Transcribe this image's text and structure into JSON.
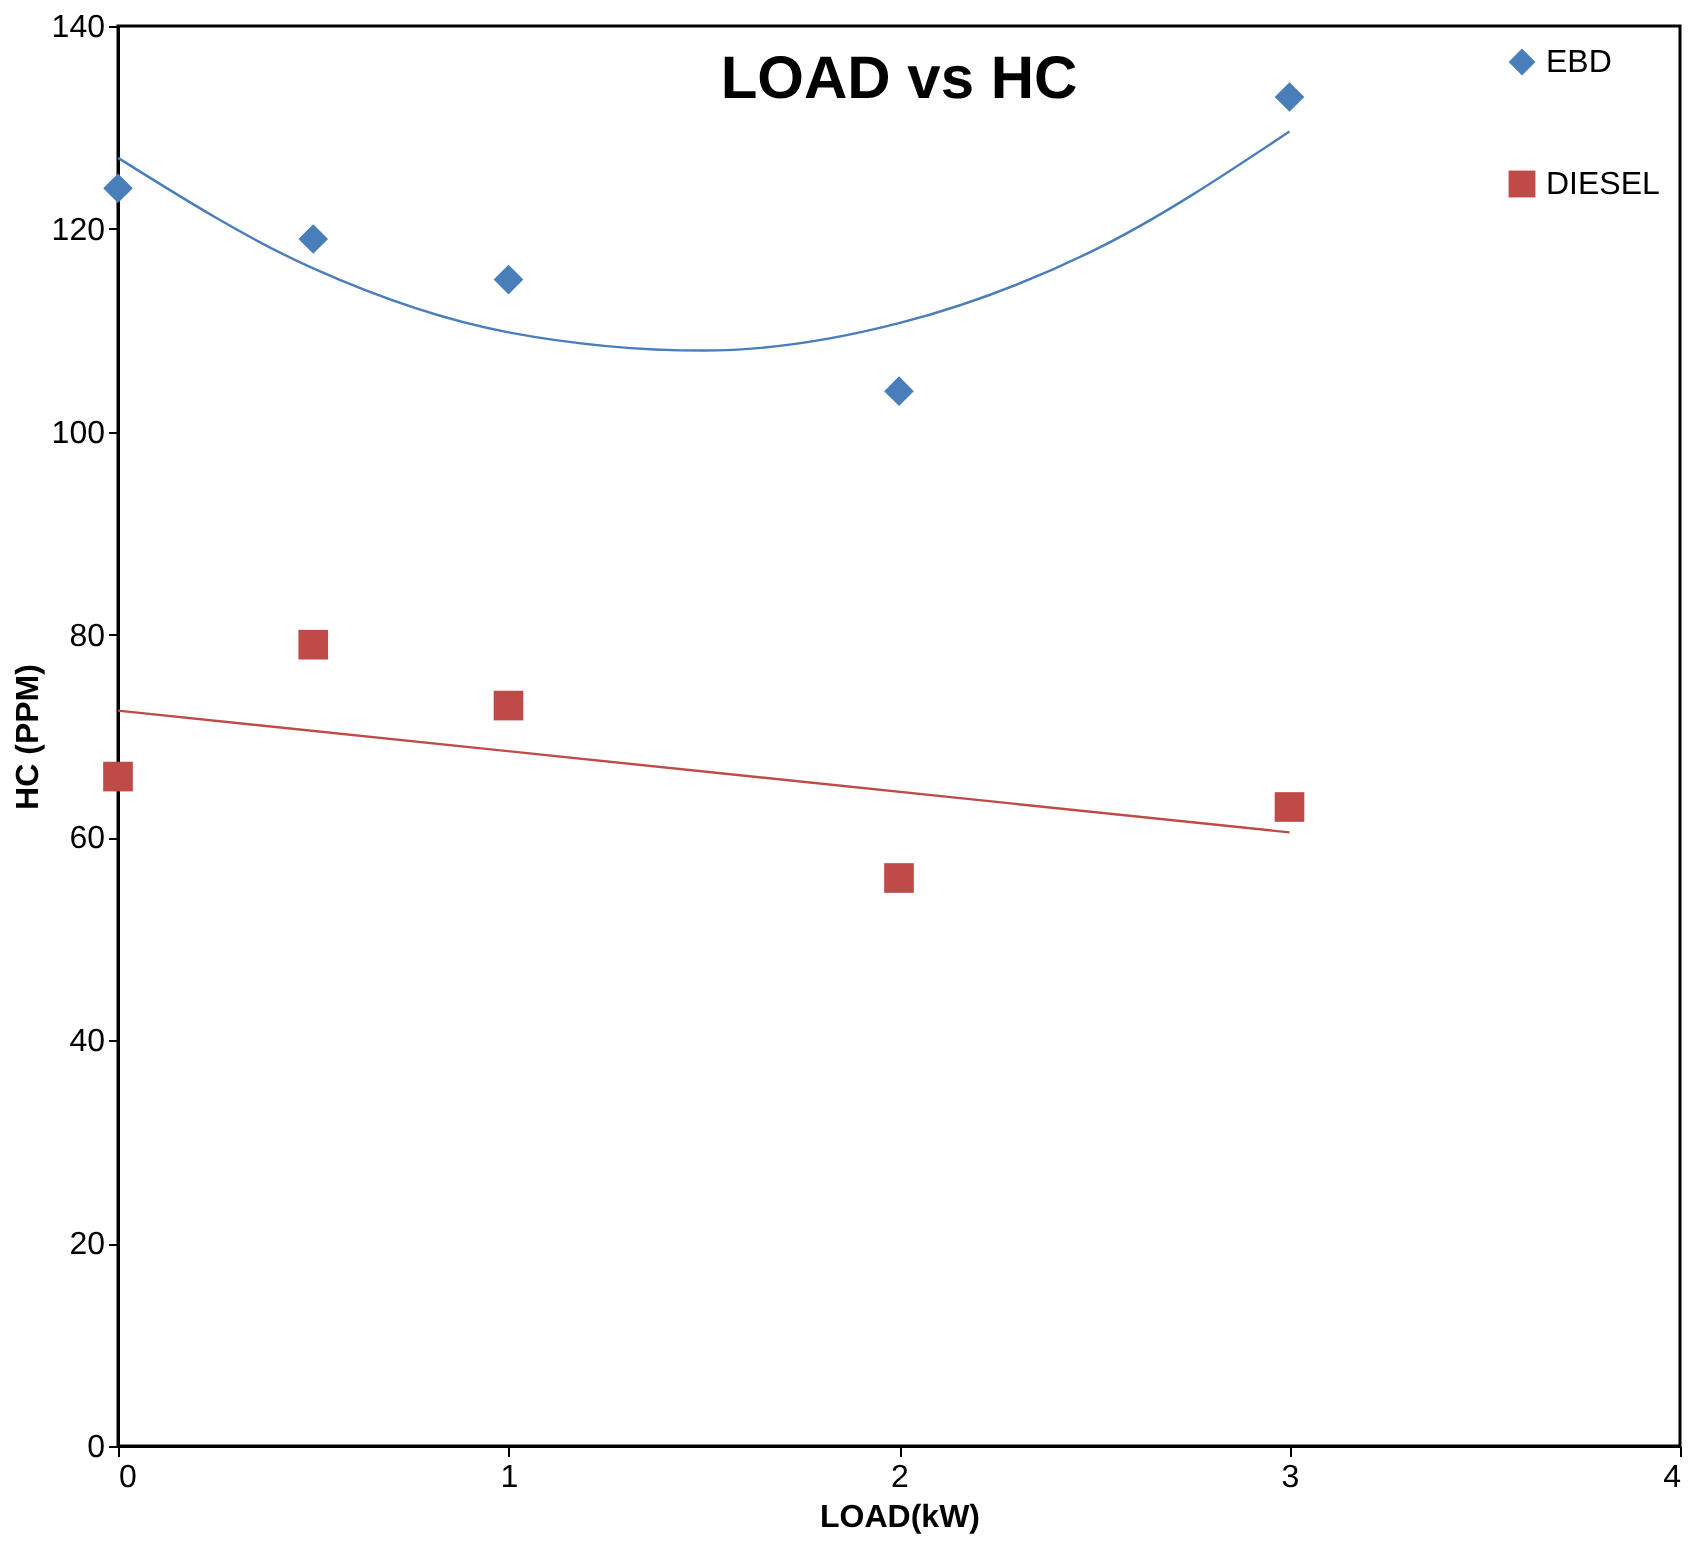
{
  "chart_data": {
    "type": "scatter",
    "title": "LOAD vs HC",
    "xlabel": "LOAD(kW)",
    "ylabel": "HC (PPM)",
    "xlim": [
      0,
      4
    ],
    "xticks": [
      0,
      1,
      2,
      3,
      4
    ],
    "ylim": [
      0,
      140
    ],
    "yticks": [
      0,
      20,
      40,
      60,
      80,
      100,
      120,
      140
    ],
    "grid": false,
    "legend": "top right",
    "series": [
      {
        "name": "EBD",
        "color": "#4a7ebb",
        "marker": "diamond",
        "x": [
          0,
          0.5,
          1,
          2,
          3
        ],
        "values": [
          124,
          119,
          115,
          104,
          133
        ]
      },
      {
        "name": "DIESEL",
        "color": "#be4b48",
        "marker": "square",
        "x": [
          0,
          0.5,
          1,
          2,
          3
        ],
        "values": [
          66,
          79,
          73,
          56,
          63
        ]
      },
      {
        "type": "line",
        "color": "#4a7ebb",
        "x": [
          0,
          0.5,
          1,
          1.5,
          2,
          2.5,
          3
        ],
        "values": [
          127,
          116.1,
          109.8,
          108,
          110.7,
          117.9,
          129.6
        ]
      },
      {
        "type": "line",
        "color": "#be4b48",
        "x": [
          0,
          3
        ],
        "values": [
          72.5,
          60.5
        ]
      }
    ]
  }
}
